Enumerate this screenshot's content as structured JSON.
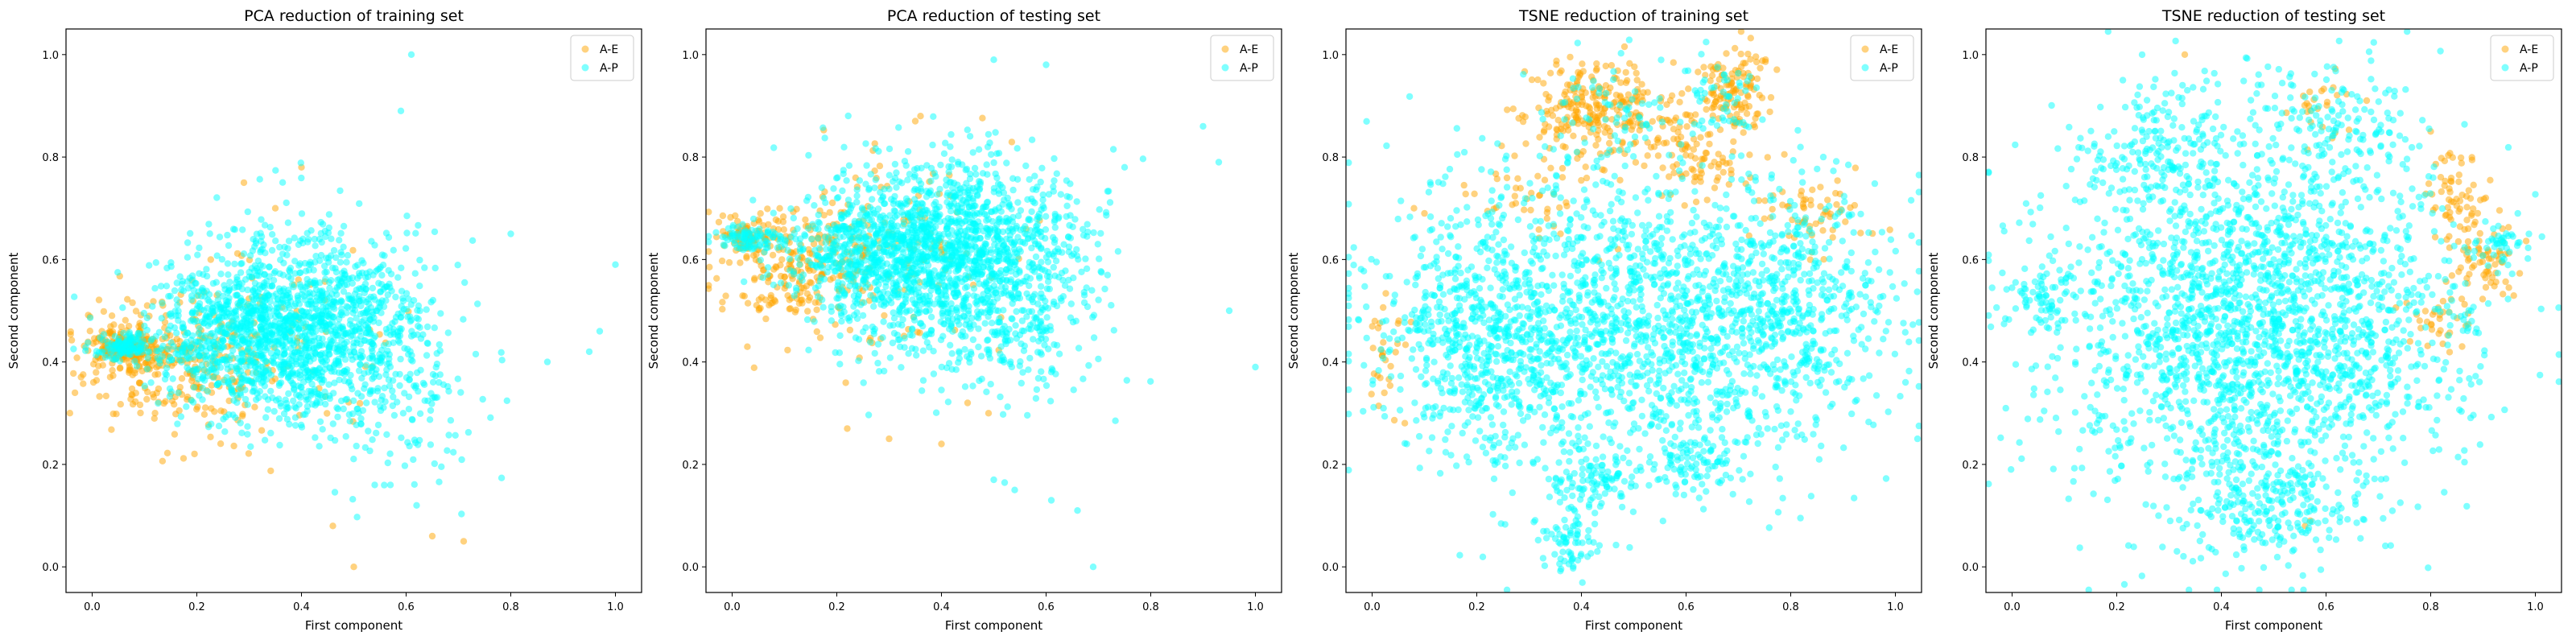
{
  "colors": {
    "A-E": "#ffa500",
    "A-P": "#00ffff"
  },
  "chart_data": [
    {
      "type": "scatter",
      "title": "PCA reduction of training set",
      "xlabel": "First component",
      "ylabel": "Second component",
      "xlim": [
        -0.05,
        1.05
      ],
      "ylim": [
        -0.05,
        1.05
      ],
      "xticks": [
        "0.0",
        "0.2",
        "0.4",
        "0.6",
        "0.8",
        "1.0"
      ],
      "yticks": [
        "0.0",
        "0.2",
        "0.4",
        "0.6",
        "0.8",
        "1.0"
      ],
      "legend": "top-right",
      "series": [
        {
          "name": "A-E",
          "color": "#ffa500",
          "clusters": [
            {
              "center": [
                0.06,
                0.43
              ],
              "spread": [
                0.04,
                0.02
              ],
              "count": 160
            },
            {
              "center": [
                0.15,
                0.4
              ],
              "spread": [
                0.08,
                0.06
              ],
              "count": 240
            },
            {
              "center": [
                0.32,
                0.42
              ],
              "spread": [
                0.12,
                0.1
              ],
              "count": 100
            }
          ],
          "points": [
            [
              0.4,
              0.78
            ],
            [
              0.5,
              0.0
            ],
            [
              0.46,
              0.08
            ],
            [
              0.71,
              0.05
            ],
            [
              0.65,
              0.06
            ],
            [
              0.35,
              0.7
            ],
            [
              0.29,
              0.75
            ]
          ]
        },
        {
          "name": "A-P",
          "color": "#00ffff",
          "clusters": [
            {
              "center": [
                0.4,
                0.47
              ],
              "spread": [
                0.11,
                0.09
              ],
              "count": 1300
            },
            {
              "center": [
                0.25,
                0.45
              ],
              "spread": [
                0.08,
                0.06
              ],
              "count": 350
            },
            {
              "center": [
                0.06,
                0.43
              ],
              "spread": [
                0.03,
                0.015
              ],
              "count": 120
            },
            {
              "center": [
                0.58,
                0.38
              ],
              "spread": [
                0.08,
                0.12
              ],
              "count": 180
            }
          ],
          "points": [
            [
              0.61,
              1.0
            ],
            [
              0.59,
              0.89
            ],
            [
              1.0,
              0.59
            ],
            [
              0.97,
              0.46
            ],
            [
              0.95,
              0.42
            ],
            [
              0.62,
              0.12
            ],
            [
              0.57,
              0.16
            ],
            [
              0.54,
              0.16
            ],
            [
              0.8,
              0.65
            ],
            [
              0.87,
              0.4
            ]
          ]
        }
      ]
    },
    {
      "type": "scatter",
      "title": "PCA reduction of testing set",
      "xlabel": "First component",
      "ylabel": "Second component",
      "xlim": [
        -0.05,
        1.05
      ],
      "ylim": [
        -0.05,
        1.05
      ],
      "xticks": [
        "0.0",
        "0.2",
        "0.4",
        "0.6",
        "0.8",
        "1.0"
      ],
      "yticks": [
        "0.0",
        "0.2",
        "0.4",
        "0.6",
        "0.8",
        "1.0"
      ],
      "legend": "top-right",
      "series": [
        {
          "name": "A-E",
          "color": "#ffa500",
          "clusters": [
            {
              "center": [
                0.02,
                0.64
              ],
              "spread": [
                0.03,
                0.02
              ],
              "count": 80
            },
            {
              "center": [
                0.13,
                0.58
              ],
              "spread": [
                0.07,
                0.06
              ],
              "count": 200
            },
            {
              "center": [
                0.3,
                0.62
              ],
              "spread": [
                0.1,
                0.1
              ],
              "count": 140
            }
          ],
          "points": [
            [
              0.3,
              0.25
            ],
            [
              0.4,
              0.24
            ],
            [
              0.35,
              0.87
            ],
            [
              0.36,
              0.88
            ],
            [
              0.22,
              0.27
            ],
            [
              0.49,
              0.3
            ],
            [
              0.45,
              0.32
            ]
          ]
        },
        {
          "name": "A-P",
          "color": "#00ffff",
          "clusters": [
            {
              "center": [
                0.42,
                0.6
              ],
              "spread": [
                0.11,
                0.1
              ],
              "count": 1400
            },
            {
              "center": [
                0.25,
                0.62
              ],
              "spread": [
                0.08,
                0.06
              ],
              "count": 400
            },
            {
              "center": [
                0.03,
                0.64
              ],
              "spread": [
                0.03,
                0.015
              ],
              "count": 90
            },
            {
              "center": [
                0.55,
                0.55
              ],
              "spread": [
                0.1,
                0.12
              ],
              "count": 200
            }
          ],
          "points": [
            [
              0.69,
              0.0
            ],
            [
              0.61,
              0.13
            ],
            [
              0.66,
              0.11
            ],
            [
              0.54,
              0.15
            ],
            [
              0.5,
              0.17
            ],
            [
              0.95,
              0.5
            ],
            [
              1.0,
              0.39
            ],
            [
              0.9,
              0.86
            ],
            [
              0.93,
              0.79
            ],
            [
              0.75,
              0.78
            ],
            [
              0.6,
              0.98
            ],
            [
              0.5,
              0.99
            ]
          ]
        }
      ]
    },
    {
      "type": "scatter",
      "title": "TSNE reduction of training set",
      "xlabel": "First component",
      "ylabel": "Second component",
      "xlim": [
        -0.05,
        1.05
      ],
      "ylim": [
        -0.05,
        1.05
      ],
      "xticks": [
        "0.0",
        "0.2",
        "0.4",
        "0.6",
        "0.8",
        "1.0"
      ],
      "yticks": [
        "0.0",
        "0.2",
        "0.4",
        "0.6",
        "0.8",
        "1.0"
      ],
      "legend": "top-right",
      "series": [
        {
          "name": "A-E",
          "color": "#ffa500",
          "clusters": [
            {
              "center": [
                0.43,
                0.89
              ],
              "spread": [
                0.07,
                0.05
              ],
              "count": 260
            },
            {
              "center": [
                0.69,
                0.93
              ],
              "spread": [
                0.04,
                0.04
              ],
              "count": 120
            },
            {
              "center": [
                0.62,
                0.8
              ],
              "spread": [
                0.06,
                0.05
              ],
              "count": 100
            },
            {
              "center": [
                0.85,
                0.68
              ],
              "spread": [
                0.05,
                0.04
              ],
              "count": 60
            },
            {
              "center": [
                0.03,
                0.4
              ],
              "spread": [
                0.02,
                0.06
              ],
              "count": 30
            },
            {
              "center": [
                0.3,
                0.72
              ],
              "spread": [
                0.06,
                0.05
              ],
              "count": 40
            }
          ],
          "points": [
            [
              0.1,
              0.69
            ],
            [
              0.08,
              0.7
            ],
            [
              0.47,
              0.62
            ],
            [
              0.36,
              0.65
            ]
          ]
        },
        {
          "name": "A-P",
          "color": "#00ffff",
          "clusters": [
            {
              "center": [
                0.5,
                0.48
              ],
              "spread": [
                0.22,
                0.15
              ],
              "count": 1700
            },
            {
              "center": [
                0.2,
                0.45
              ],
              "spread": [
                0.09,
                0.12
              ],
              "count": 400
            },
            {
              "center": [
                0.8,
                0.52
              ],
              "spread": [
                0.09,
                0.12
              ],
              "count": 350
            },
            {
              "center": [
                0.42,
                0.17
              ],
              "spread": [
                0.04,
                0.03
              ],
              "count": 90
            },
            {
              "center": [
                0.61,
                0.2
              ],
              "spread": [
                0.04,
                0.03
              ],
              "count": 70
            },
            {
              "center": [
                0.38,
                0.05
              ],
              "spread": [
                0.03,
                0.03
              ],
              "count": 70
            },
            {
              "center": [
                0.45,
                0.88
              ],
              "spread": [
                0.07,
                0.05
              ],
              "count": 60
            },
            {
              "center": [
                0.66,
                0.92
              ],
              "spread": [
                0.04,
                0.04
              ],
              "count": 50
            }
          ],
          "points": []
        }
      ]
    },
    {
      "type": "scatter",
      "title": "TSNE reduction of testing set",
      "xlabel": "First component",
      "ylabel": "Second component",
      "xlim": [
        -0.05,
        1.05
      ],
      "ylim": [
        -0.05,
        1.05
      ],
      "xticks": [
        "0.0",
        "0.2",
        "0.4",
        "0.6",
        "0.8",
        "1.0"
      ],
      "yticks": [
        "0.0",
        "0.2",
        "0.4",
        "0.6",
        "0.8",
        "1.0"
      ],
      "legend": "top-right",
      "series": [
        {
          "name": "A-E",
          "color": "#ffa500",
          "clusters": [
            {
              "center": [
                0.85,
                0.72
              ],
              "spread": [
                0.03,
                0.04
              ],
              "count": 60
            },
            {
              "center": [
                0.9,
                0.6
              ],
              "spread": [
                0.04,
                0.04
              ],
              "count": 70
            },
            {
              "center": [
                0.58,
                0.9
              ],
              "spread": [
                0.04,
                0.03
              ],
              "count": 25
            },
            {
              "center": [
                0.82,
                0.48
              ],
              "spread": [
                0.03,
                0.03
              ],
              "count": 30
            }
          ],
          "points": [
            [
              0.33,
              1.0
            ],
            [
              0.56,
              0.08
            ],
            [
              0.57,
              0.09
            ],
            [
              0.8,
              0.85
            ],
            [
              0.86,
              0.43
            ]
          ]
        },
        {
          "name": "A-P",
          "color": "#00ffff",
          "clusters": [
            {
              "center": [
                0.48,
                0.48
              ],
              "spread": [
                0.19,
                0.18
              ],
              "count": 2200
            },
            {
              "center": [
                0.28,
                0.82
              ],
              "spread": [
                0.07,
                0.07
              ],
              "count": 150
            },
            {
              "center": [
                0.06,
                0.53
              ],
              "spread": [
                0.03,
                0.04
              ],
              "count": 80
            },
            {
              "center": [
                0.48,
                0.12
              ],
              "spread": [
                0.08,
                0.06
              ],
              "count": 200
            },
            {
              "center": [
                0.62,
                0.86
              ],
              "spread": [
                0.07,
                0.06
              ],
              "count": 120
            },
            {
              "center": [
                0.94,
                0.62
              ],
              "spread": [
                0.03,
                0.02
              ],
              "count": 40
            }
          ],
          "points": []
        }
      ]
    }
  ]
}
